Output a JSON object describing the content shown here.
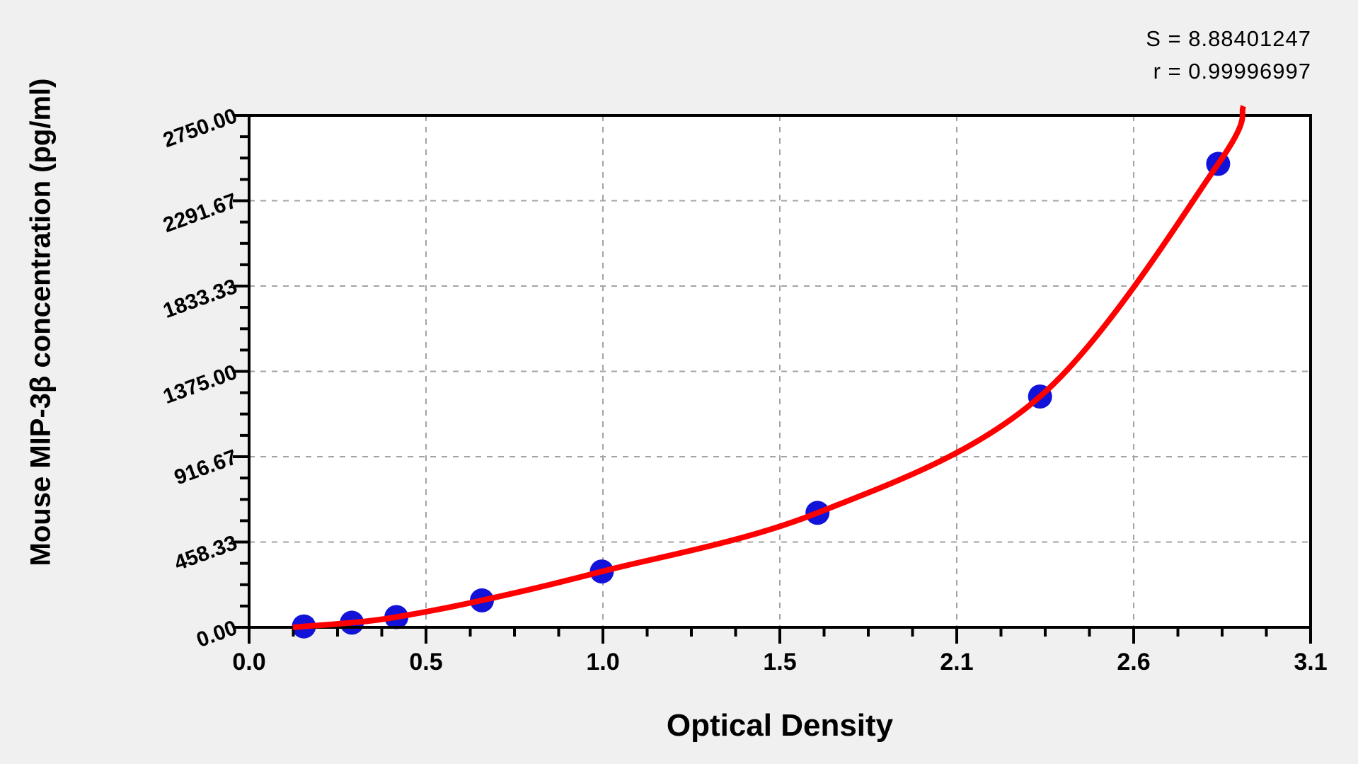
{
  "chart_data": {
    "type": "scatter",
    "title": "",
    "xlabel": "Optical Density",
    "ylabel": "Mouse MIP-3β concentration (pg/ml)",
    "x_range": [
      0,
      3.1
    ],
    "y_range": [
      0,
      2750
    ],
    "x_ticks": [
      {
        "value": 0,
        "label": "0.0"
      },
      {
        "value": 0.516667,
        "label": "0.5"
      },
      {
        "value": 1.033333,
        "label": "1.0"
      },
      {
        "value": 1.55,
        "label": "1.5"
      },
      {
        "value": 2.066667,
        "label": "2.1"
      },
      {
        "value": 2.583333,
        "label": "2.6"
      },
      {
        "value": 3.1,
        "label": "3.1"
      }
    ],
    "y_ticks": [
      {
        "value": 0,
        "label": "0.00"
      },
      {
        "value": 458.33,
        "label": "458.33"
      },
      {
        "value": 916.67,
        "label": "916.67"
      },
      {
        "value": 1375,
        "label": "1375.00"
      },
      {
        "value": 1833.33,
        "label": "1833.33"
      },
      {
        "value": 2291.67,
        "label": "2291.67"
      },
      {
        "value": 2750,
        "label": "2750.00"
      }
    ],
    "minor_ticks_per_major_interval": 3,
    "grid": "dashed-major",
    "legend": "none",
    "points": [
      {
        "od": 0.16,
        "concentration": 5
      },
      {
        "od": 0.3,
        "concentration": 25
      },
      {
        "od": 0.43,
        "concentration": 55
      },
      {
        "od": 0.68,
        "concentration": 145
      },
      {
        "od": 1.03,
        "concentration": 300
      },
      {
        "od": 1.66,
        "concentration": 615
      },
      {
        "od": 2.31,
        "concentration": 1240
      },
      {
        "od": 2.83,
        "concentration": 2490
      }
    ],
    "curve": {
      "start": {
        "od": 0.128,
        "concentration": 0
      },
      "end": {
        "od": 2.904,
        "concentration": 2800
      }
    },
    "annotations": [
      "S = 8.88401247",
      "r = 0.99996997"
    ]
  },
  "colors": {
    "background": "#f0f0f0",
    "plot_background": "#ffffff",
    "axis": "#000000",
    "grid": "#a3a3a3",
    "curve": "#ff0000",
    "point": "#1212d9",
    "text": "#000000"
  }
}
